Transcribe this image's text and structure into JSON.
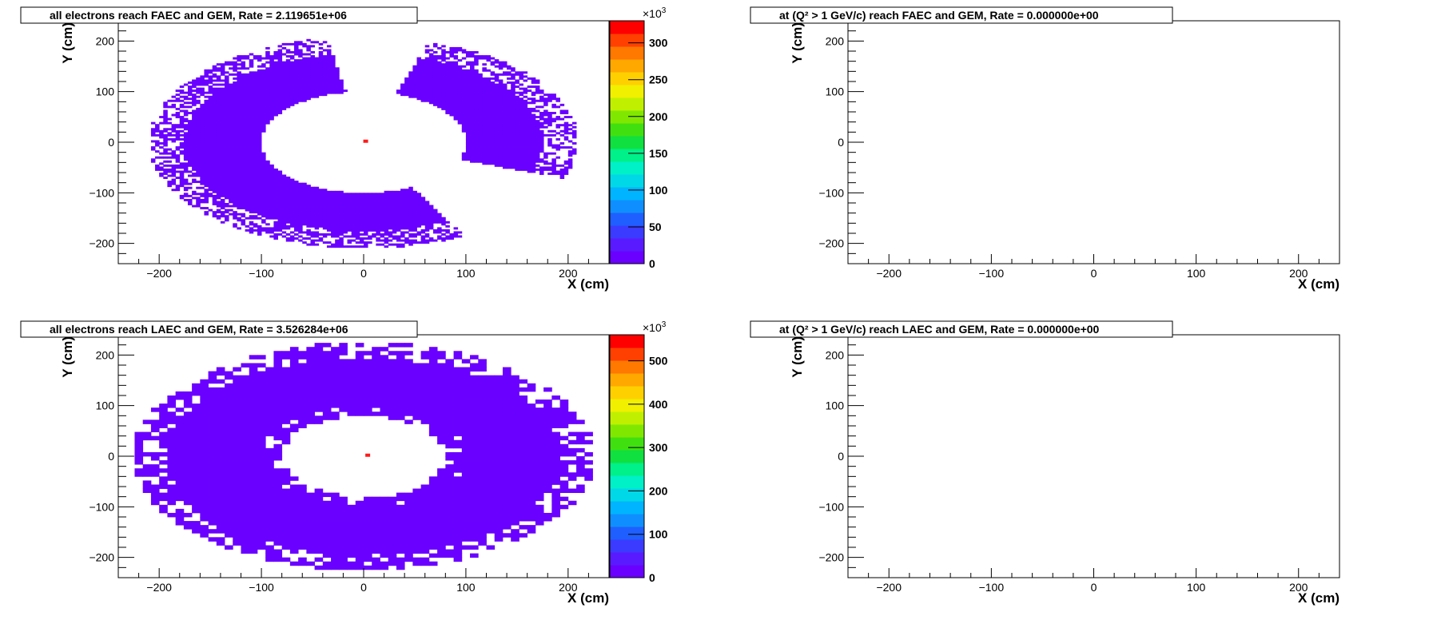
{
  "chart_data": [
    {
      "type": "heatmap",
      "title": "all electrons reach FAEC and GEM,  Rate =  2.119651e+06",
      "xlabel": "X (cm)",
      "ylabel": "Y (cm)",
      "xlim": [
        -240,
        240
      ],
      "ylim": [
        -240,
        240
      ],
      "xticks": [
        "−200",
        "−100",
        "0",
        "100",
        "200"
      ],
      "yticks": [
        "−200",
        "−100",
        "0",
        "100",
        "200"
      ],
      "zaxis": {
        "max": 330,
        "multiplier": "×10",
        "exponent": "3",
        "ticks": [
          "0",
          "50",
          "100",
          "150",
          "200",
          "250",
          "300"
        ]
      },
      "distribution": {
        "shape": "annulus with two gaps",
        "inner_radius_cm": 100,
        "outer_radius_cm": 210,
        "background_level": 1,
        "hotspot": {
          "x": 2,
          "y": 2,
          "level": 330
        }
      }
    },
    {
      "type": "heatmap",
      "title": "at (Q² > 1 GeV/c) reach FAEC and GEM,  Rate =  0.000000e+00",
      "xlabel": "X (cm)",
      "ylabel": "Y (cm)",
      "xlim": [
        -240,
        240
      ],
      "ylim": [
        -240,
        240
      ],
      "xticks": [
        "−200",
        "−100",
        "0",
        "100",
        "200"
      ],
      "yticks": [
        "−200",
        "−100",
        "0",
        "100",
        "200"
      ],
      "values": []
    },
    {
      "type": "heatmap",
      "title": "all electrons reach LAEC and GEM,  Rate =  3.526284e+06",
      "xlabel": "X (cm)",
      "ylabel": "Y (cm)",
      "xlim": [
        -240,
        240
      ],
      "ylim": [
        -240,
        240
      ],
      "xticks": [
        "−200",
        "−100",
        "0",
        "100",
        "200"
      ],
      "yticks": [
        "−200",
        "−100",
        "0",
        "100",
        "200"
      ],
      "zaxis": {
        "max": 560,
        "multiplier": "×10",
        "exponent": "3",
        "ticks": [
          "0",
          "100",
          "200",
          "300",
          "400",
          "500"
        ]
      },
      "distribution": {
        "shape": "full annulus",
        "inner_radius_cm": 80,
        "outer_radius_cm": 225,
        "background_level": 1,
        "hotspot": {
          "x": 4,
          "y": 2,
          "level": 560
        }
      }
    },
    {
      "type": "heatmap",
      "title": "at (Q² > 1 GeV/c) reach LAEC and GEM,  Rate =  0.000000e+00",
      "xlabel": "X (cm)",
      "ylabel": "Y (cm)",
      "xlim": [
        -240,
        240
      ],
      "ylim": [
        -240,
        240
      ],
      "xticks": [
        "−200",
        "−100",
        "0",
        "100",
        "200"
      ],
      "yticks": [
        "−200",
        "−100",
        "0",
        "100",
        "200"
      ],
      "values": []
    }
  ],
  "colors": {
    "palette": [
      "#6a00ff",
      "#5a1aff",
      "#3b3bff",
      "#1f5fff",
      "#0f8fff",
      "#00b4ff",
      "#00d8e8",
      "#00f0c8",
      "#00f08a",
      "#10e040",
      "#40e010",
      "#80e800",
      "#c0f000",
      "#f0f000",
      "#ffd000",
      "#ffa800",
      "#ff7800",
      "#ff4000",
      "#ff0000"
    ],
    "hotspot": "#ff1a1a",
    "frame": "#000000"
  }
}
